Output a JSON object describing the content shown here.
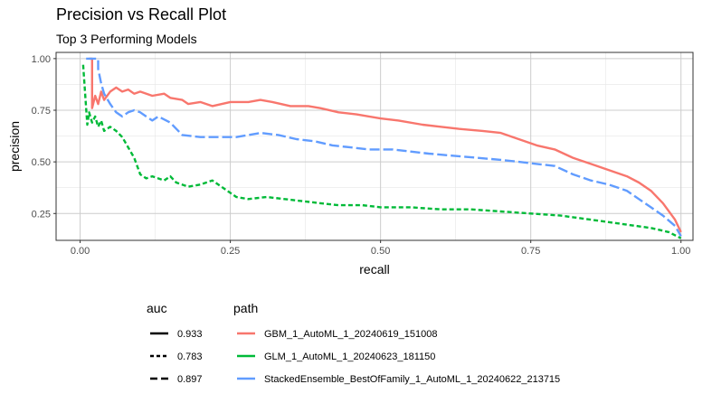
{
  "chart_data": {
    "type": "line",
    "title": "Precision vs Recall Plot",
    "subtitle": "Top 3 Performing Models",
    "xlabel": "recall",
    "ylabel": "precision",
    "xlim": [
      -0.04,
      1.02
    ],
    "ylim": [
      0.12,
      1.03
    ],
    "x_ticks": [
      0.0,
      0.25,
      0.5,
      0.75,
      1.0
    ],
    "x_tick_labels": [
      "0.00",
      "0.25",
      "0.50",
      "0.75",
      "1.00"
    ],
    "y_ticks": [
      0.25,
      0.5,
      0.75,
      1.0
    ],
    "y_tick_labels": [
      "0.25",
      "0.50",
      "0.75",
      "1.00"
    ],
    "grid": true,
    "legend_position": "bottom",
    "legend_auc": {
      "title": "auc",
      "entries": [
        {
          "label": "0.933",
          "dash": "solid"
        },
        {
          "label": "0.783",
          "dash": "dashed"
        },
        {
          "label": "0.897",
          "dash": "longdash"
        }
      ]
    },
    "legend_path": {
      "title": "path",
      "entries": [
        {
          "label": "GBM_1_AutoML_1_20240619_151008",
          "color": "#F8766D"
        },
        {
          "label": "GLM_1_AutoML_1_20240623_181150",
          "color": "#00BA38"
        },
        {
          "label": "StackedEnsemble_BestOfFamily_1_AutoML_1_20240622_213715",
          "color": "#619CFF"
        }
      ]
    },
    "series": [
      {
        "path": "GBM_1_AutoML_1_20240619_151008",
        "auc": "0.933",
        "color": "#F8766D",
        "dash": "solid",
        "points": [
          [
            0.015,
            1.0
          ],
          [
            0.02,
            1.0
          ],
          [
            0.02,
            0.76
          ],
          [
            0.025,
            0.82
          ],
          [
            0.03,
            0.78
          ],
          [
            0.035,
            0.84
          ],
          [
            0.04,
            0.8
          ],
          [
            0.05,
            0.84
          ],
          [
            0.06,
            0.86
          ],
          [
            0.07,
            0.84
          ],
          [
            0.08,
            0.85
          ],
          [
            0.09,
            0.83
          ],
          [
            0.1,
            0.84
          ],
          [
            0.12,
            0.82
          ],
          [
            0.14,
            0.83
          ],
          [
            0.15,
            0.81
          ],
          [
            0.17,
            0.8
          ],
          [
            0.18,
            0.78
          ],
          [
            0.2,
            0.79
          ],
          [
            0.22,
            0.77
          ],
          [
            0.25,
            0.79
          ],
          [
            0.28,
            0.79
          ],
          [
            0.3,
            0.8
          ],
          [
            0.32,
            0.79
          ],
          [
            0.35,
            0.77
          ],
          [
            0.38,
            0.77
          ],
          [
            0.4,
            0.76
          ],
          [
            0.43,
            0.74
          ],
          [
            0.46,
            0.73
          ],
          [
            0.5,
            0.71
          ],
          [
            0.53,
            0.7
          ],
          [
            0.57,
            0.68
          ],
          [
            0.6,
            0.67
          ],
          [
            0.63,
            0.66
          ],
          [
            0.67,
            0.65
          ],
          [
            0.7,
            0.64
          ],
          [
            0.73,
            0.61
          ],
          [
            0.76,
            0.58
          ],
          [
            0.79,
            0.56
          ],
          [
            0.82,
            0.52
          ],
          [
            0.85,
            0.49
          ],
          [
            0.88,
            0.46
          ],
          [
            0.91,
            0.43
          ],
          [
            0.93,
            0.4
          ],
          [
            0.95,
            0.36
          ],
          [
            0.97,
            0.3
          ],
          [
            0.99,
            0.22
          ],
          [
            1.0,
            0.16
          ]
        ]
      },
      {
        "path": "GLM_1_AutoML_1_20240623_181150",
        "auc": "0.783",
        "color": "#00BA38",
        "dash": "dashed",
        "points": [
          [
            0.005,
            0.97
          ],
          [
            0.01,
            0.76
          ],
          [
            0.012,
            0.68
          ],
          [
            0.015,
            0.74
          ],
          [
            0.02,
            0.69
          ],
          [
            0.025,
            0.72
          ],
          [
            0.03,
            0.67
          ],
          [
            0.035,
            0.7
          ],
          [
            0.04,
            0.65
          ],
          [
            0.05,
            0.67
          ],
          [
            0.06,
            0.65
          ],
          [
            0.07,
            0.62
          ],
          [
            0.08,
            0.57
          ],
          [
            0.09,
            0.52
          ],
          [
            0.1,
            0.44
          ],
          [
            0.11,
            0.42
          ],
          [
            0.12,
            0.43
          ],
          [
            0.14,
            0.41
          ],
          [
            0.15,
            0.43
          ],
          [
            0.16,
            0.4
          ],
          [
            0.18,
            0.38
          ],
          [
            0.2,
            0.39
          ],
          [
            0.22,
            0.41
          ],
          [
            0.24,
            0.37
          ],
          [
            0.26,
            0.33
          ],
          [
            0.28,
            0.32
          ],
          [
            0.31,
            0.33
          ],
          [
            0.34,
            0.32
          ],
          [
            0.37,
            0.31
          ],
          [
            0.4,
            0.3
          ],
          [
            0.43,
            0.29
          ],
          [
            0.47,
            0.29
          ],
          [
            0.5,
            0.28
          ],
          [
            0.55,
            0.28
          ],
          [
            0.6,
            0.27
          ],
          [
            0.65,
            0.27
          ],
          [
            0.7,
            0.26
          ],
          [
            0.75,
            0.25
          ],
          [
            0.8,
            0.24
          ],
          [
            0.85,
            0.22
          ],
          [
            0.9,
            0.2
          ],
          [
            0.95,
            0.18
          ],
          [
            0.98,
            0.16
          ],
          [
            1.0,
            0.13
          ]
        ]
      },
      {
        "path": "StackedEnsemble_BestOfFamily_1_AutoML_1_20240622_213715",
        "auc": "0.897",
        "color": "#619CFF",
        "dash": "longdash",
        "points": [
          [
            0.01,
            1.0
          ],
          [
            0.03,
            1.0
          ],
          [
            0.03,
            0.95
          ],
          [
            0.035,
            0.88
          ],
          [
            0.04,
            0.83
          ],
          [
            0.05,
            0.78
          ],
          [
            0.06,
            0.74
          ],
          [
            0.07,
            0.72
          ],
          [
            0.08,
            0.74
          ],
          [
            0.09,
            0.75
          ],
          [
            0.1,
            0.74
          ],
          [
            0.11,
            0.72
          ],
          [
            0.12,
            0.7
          ],
          [
            0.13,
            0.72
          ],
          [
            0.15,
            0.69
          ],
          [
            0.17,
            0.63
          ],
          [
            0.2,
            0.62
          ],
          [
            0.23,
            0.62
          ],
          [
            0.26,
            0.62
          ],
          [
            0.28,
            0.63
          ],
          [
            0.3,
            0.64
          ],
          [
            0.33,
            0.63
          ],
          [
            0.36,
            0.61
          ],
          [
            0.39,
            0.6
          ],
          [
            0.42,
            0.58
          ],
          [
            0.45,
            0.57
          ],
          [
            0.48,
            0.56
          ],
          [
            0.52,
            0.56
          ],
          [
            0.55,
            0.55
          ],
          [
            0.58,
            0.54
          ],
          [
            0.62,
            0.53
          ],
          [
            0.66,
            0.52
          ],
          [
            0.7,
            0.51
          ],
          [
            0.73,
            0.5
          ],
          [
            0.76,
            0.49
          ],
          [
            0.79,
            0.48
          ],
          [
            0.82,
            0.44
          ],
          [
            0.85,
            0.41
          ],
          [
            0.88,
            0.39
          ],
          [
            0.91,
            0.36
          ],
          [
            0.93,
            0.32
          ],
          [
            0.95,
            0.28
          ],
          [
            0.97,
            0.24
          ],
          [
            0.99,
            0.19
          ],
          [
            1.0,
            0.14
          ]
        ]
      }
    ]
  }
}
